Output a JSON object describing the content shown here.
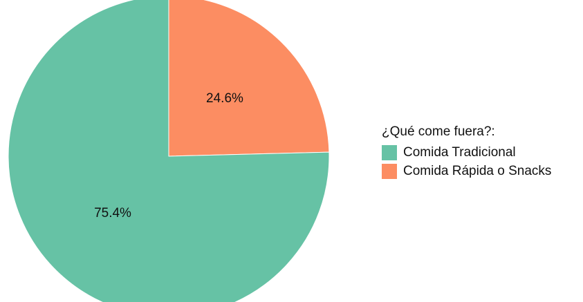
{
  "chart_data": {
    "type": "pie",
    "title": "",
    "categories": [
      "Comida Tradicional",
      "Comida Rápida o Snacks"
    ],
    "values": [
      75.4,
      24.6
    ],
    "data_labels": [
      "75.4%",
      "24.6%"
    ],
    "colors": [
      "#66c2a5",
      "#fc8d62"
    ],
    "start_angle": "12 o'clock",
    "direction": "clockwise from Comida Rápida o Snacks",
    "legend": {
      "title": "¿Qué come fuera?:",
      "placement": "right"
    }
  }
}
